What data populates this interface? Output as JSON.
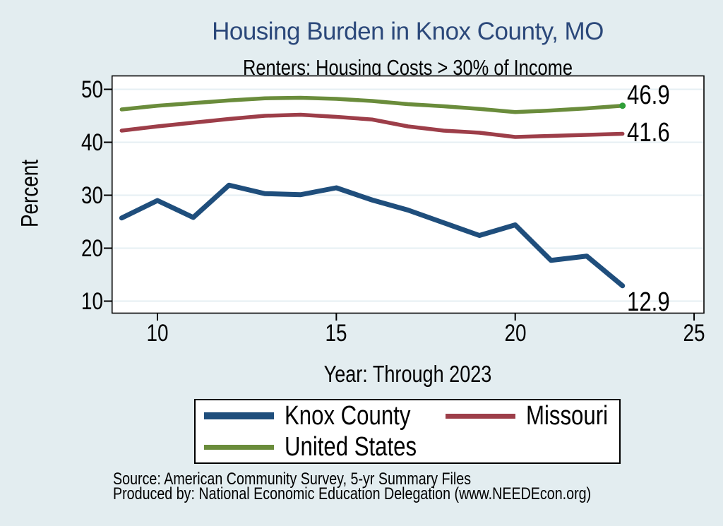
{
  "page": {
    "background_color": "#e3edf0",
    "plot_background": "#ffffff",
    "grid_color": "#e6eff3",
    "axis_color": "#000000",
    "title_color": "#2b487a"
  },
  "header": {
    "title": "Housing Burden in Knox County, MO",
    "subtitle": "Renters: Housing Costs > 30% of Income"
  },
  "chart_data": {
    "type": "line",
    "title": "Housing Burden in Knox County, MO",
    "subtitle": "Renters: Housing Costs > 30% of Income",
    "xlabel": "Year: Through 2023",
    "ylabel": "Percent",
    "grid": true,
    "legend_position": "bottom",
    "x": [
      9,
      10,
      11,
      12,
      13,
      14,
      15,
      16,
      17,
      18,
      19,
      20,
      21,
      22,
      23
    ],
    "x_ticks": [
      10,
      15,
      20,
      25
    ],
    "y_ticks": [
      10,
      20,
      30,
      40,
      50
    ],
    "xlim": [
      8.7,
      25.3
    ],
    "ylim": [
      7.8,
      52.5
    ],
    "series": [
      {
        "name": "Knox County",
        "color": "#1f4e7c",
        "line_width": 7,
        "values": [
          25.7,
          29.0,
          25.8,
          31.9,
          30.3,
          30.1,
          31.4,
          29.1,
          27.2,
          24.8,
          22.4,
          24.4,
          17.7,
          18.5,
          12.9
        ],
        "end_label": "12.9"
      },
      {
        "name": "Missouri",
        "color": "#9d3e49",
        "line_width": 5.5,
        "values": [
          42.2,
          43.0,
          43.7,
          44.4,
          45.0,
          45.2,
          44.8,
          44.3,
          43.0,
          42.2,
          41.8,
          41.0,
          41.2,
          41.4,
          41.6
        ],
        "end_label": "41.6"
      },
      {
        "name": "United States",
        "color": "#6a8c3b",
        "line_width": 5.5,
        "values": [
          46.2,
          46.9,
          47.4,
          47.9,
          48.3,
          48.4,
          48.2,
          47.8,
          47.2,
          46.8,
          46.3,
          45.7,
          46.0,
          46.4,
          46.9
        ],
        "end_label": "46.9",
        "end_dot_color": "#2f9e38"
      }
    ]
  },
  "legend": {
    "items": [
      {
        "label": "Knox County",
        "color": "#1f4e7c",
        "swatch_height": 10
      },
      {
        "label": "Missouri",
        "color": "#9d3e49",
        "swatch_height": 7
      },
      {
        "label": "United States",
        "color": "#6a8c3b",
        "swatch_height": 7
      }
    ]
  },
  "footer": {
    "source": "Source: American Community Survey, 5-yr Summary Files",
    "produced_by": "Produced by: National Economic Education Delegation (www.NEEDEcon.org)"
  }
}
